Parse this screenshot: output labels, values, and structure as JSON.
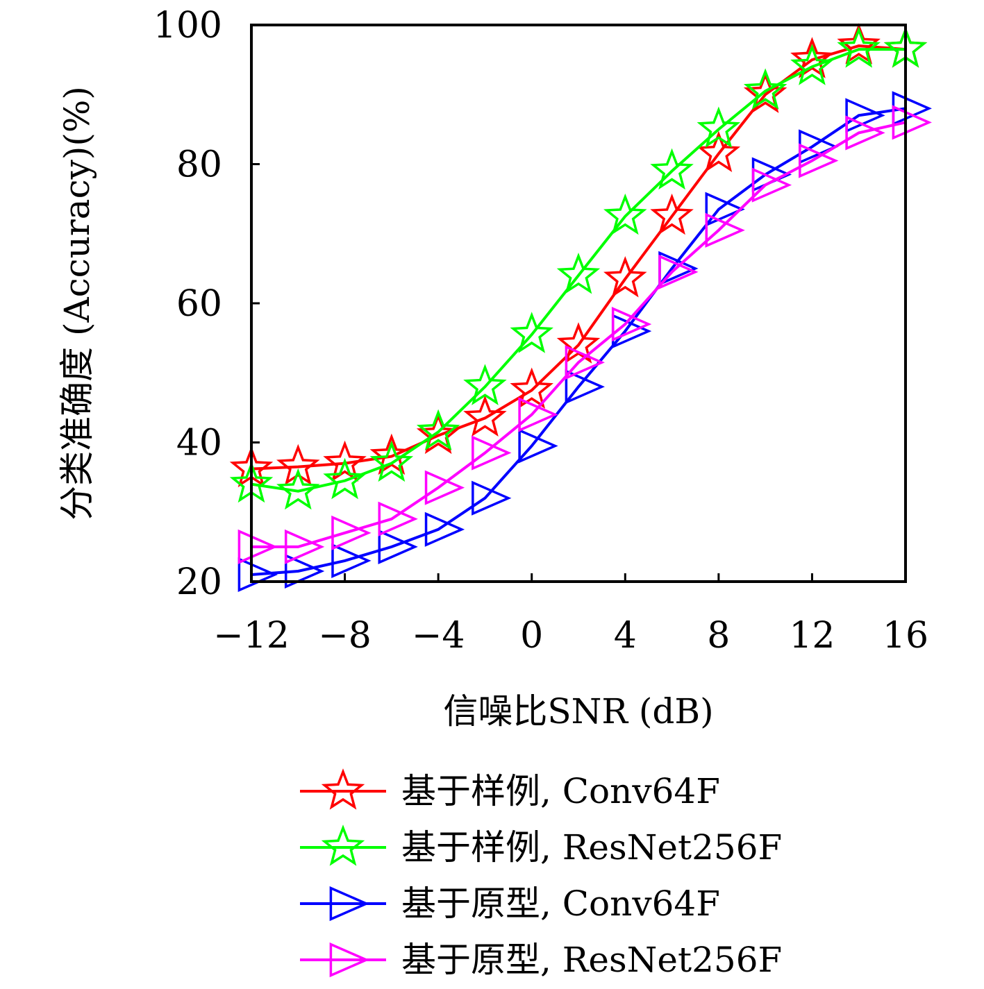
{
  "chart_data": {
    "type": "line",
    "xlabel": "信噪比SNR (dB)",
    "ylabel": "分类准确度 (Accuracy)(%)",
    "xlim": [
      -12,
      16
    ],
    "ylim": [
      20,
      100
    ],
    "xticks": [
      "−12",
      "−8",
      "−4",
      "0",
      "4",
      "8",
      "12",
      "16"
    ],
    "xtick_values": [
      -12,
      -8,
      -4,
      0,
      4,
      8,
      12,
      16
    ],
    "yticks": [
      "20",
      "40",
      "60",
      "80",
      "100"
    ],
    "ytick_values": [
      20,
      40,
      60,
      80,
      100
    ],
    "x": [
      -12,
      -10,
      -8,
      -6,
      -4,
      -2,
      0,
      2,
      4,
      6,
      8,
      10,
      12,
      14,
      16
    ],
    "legend_position": "bottom",
    "series": [
      {
        "name": "基于样例, Conv64F",
        "color": "#ff0000",
        "marker": "star",
        "values": [
          36.2,
          36.5,
          37.0,
          38.0,
          41.0,
          43.5,
          47.5,
          54.0,
          63.5,
          72.5,
          81.5,
          90.0,
          95.0,
          97.0,
          96.5
        ]
      },
      {
        "name": "基于样例, ResNet256F",
        "color": "#00ff00",
        "marker": "star",
        "values": [
          34.0,
          33.0,
          34.5,
          37.0,
          41.5,
          48.0,
          55.5,
          64.0,
          72.5,
          79.0,
          85.0,
          90.5,
          94.0,
          96.5,
          96.5
        ]
      },
      {
        "name": "基于原型, Conv64F",
        "color": "#0000ff",
        "marker": "triangle-right",
        "values": [
          21.0,
          21.5,
          23.0,
          25.0,
          27.5,
          32.0,
          39.5,
          48.0,
          56.0,
          65.0,
          73.5,
          78.5,
          82.5,
          87.0,
          88.0
        ]
      },
      {
        "name": "基于原型, ResNet256F",
        "color": "#ff00ff",
        "marker": "triangle-right",
        "values": [
          25.0,
          25.0,
          27.0,
          29.0,
          33.5,
          38.5,
          44.0,
          51.5,
          57.0,
          64.5,
          70.5,
          77.0,
          80.5,
          84.5,
          86.0
        ]
      }
    ]
  }
}
